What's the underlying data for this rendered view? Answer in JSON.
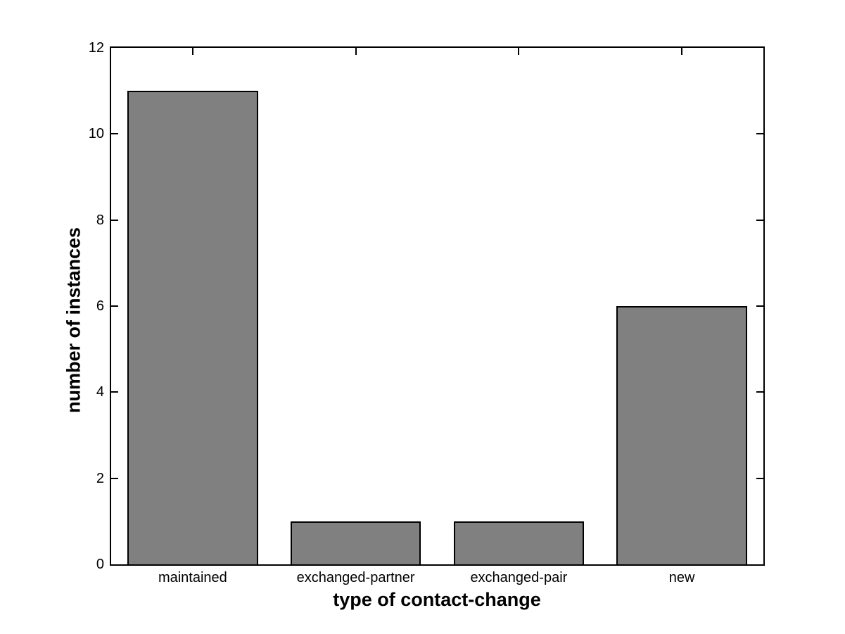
{
  "figure": {
    "background": "#ffffff",
    "axis_color": "#000000",
    "text_color": "#000000"
  },
  "chart_data": {
    "type": "bar",
    "title": "",
    "categories": [
      "maintained",
      "exchanged-partner",
      "exchanged-pair",
      "new"
    ],
    "values": [
      11,
      1,
      1,
      6
    ],
    "xlabel": "type of contact-change",
    "ylabel": "number of instances",
    "ylim": [
      0,
      12
    ],
    "yticks": [
      0,
      2,
      4,
      6,
      8,
      10,
      12
    ],
    "bar_width_fraction": 0.8,
    "bar_color": "#808080",
    "bar_edge_color": "#000000",
    "grid": false,
    "legend": null,
    "tick_style": "inward-mirrored-box"
  }
}
